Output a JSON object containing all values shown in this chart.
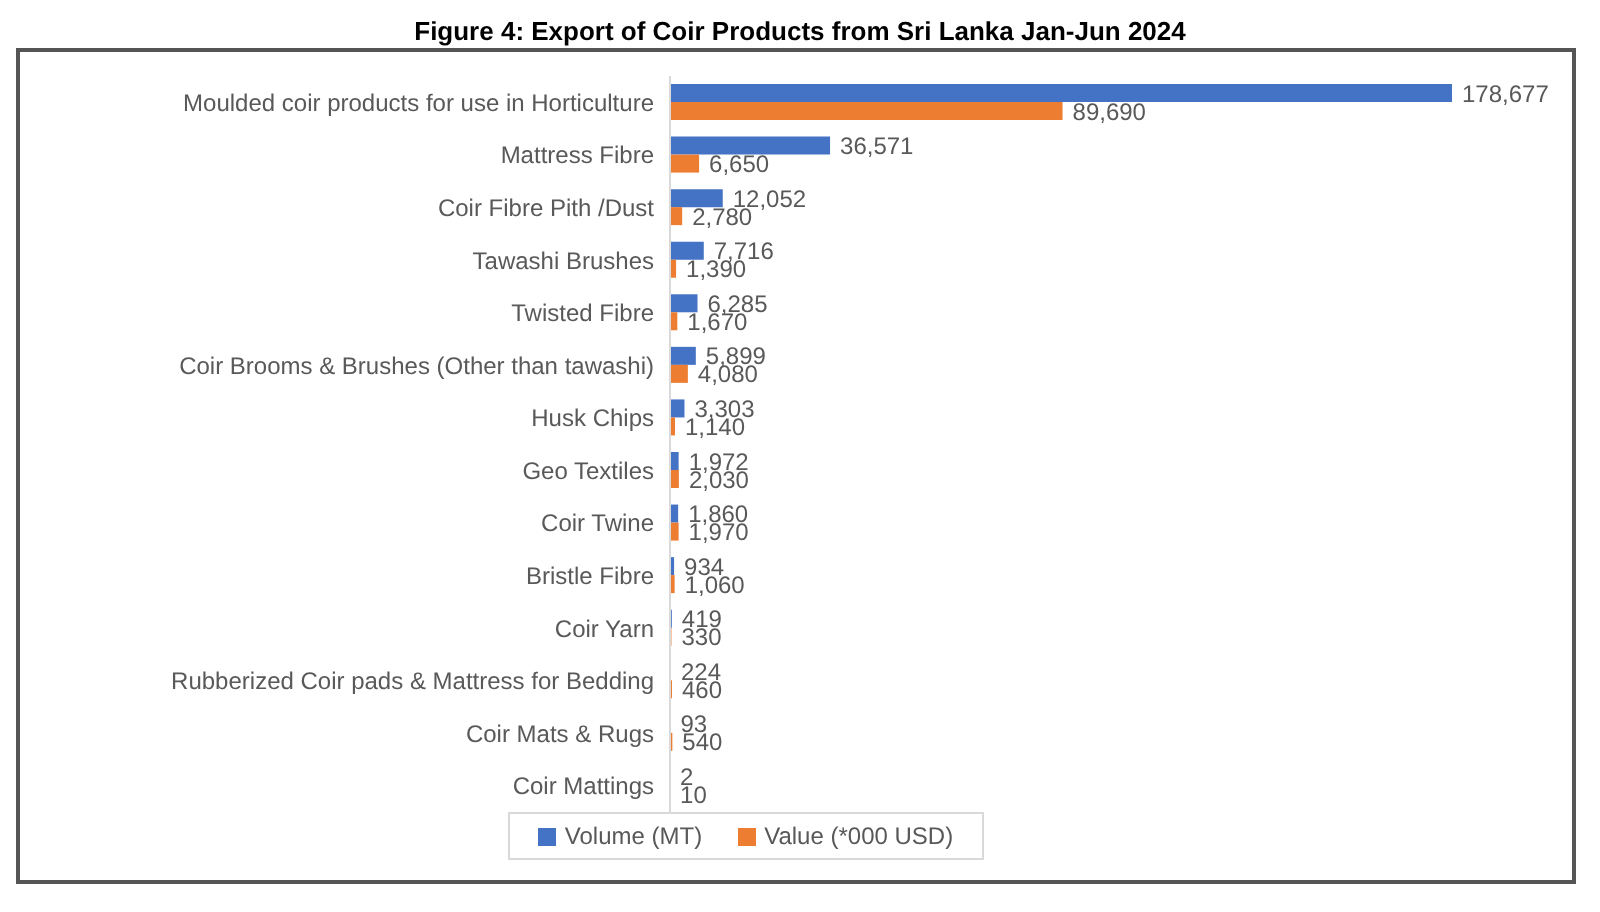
{
  "chart_data": {
    "type": "bar",
    "orientation": "horizontal",
    "title": "Figure 4: Export of Coir Products from Sri Lanka Jan-Jun 2024",
    "categories": [
      "Moulded coir products for use in Horticulture",
      "Mattress Fibre",
      "Coir Fibre Pith /Dust",
      "Tawashi Brushes",
      "Twisted Fibre",
      "Coir Brooms & Brushes (Other than tawashi)",
      "Husk Chips",
      "Geo Textiles",
      "Coir Twine",
      "Bristle Fibre",
      "Coir Yarn",
      "Rubberized Coir pads & Mattress for Bedding",
      "Coir Mats & Rugs",
      "Coir Mattings"
    ],
    "series": [
      {
        "name": "Volume (MT)",
        "color": "#4472c4",
        "values": [
          178677,
          36571,
          12052,
          7716,
          6285,
          5899,
          3303,
          1972,
          1860,
          934,
          419,
          224,
          93,
          2
        ],
        "value_labels": [
          "178,677",
          "36,571",
          "12,052",
          "7,716",
          "6,285",
          "5,899",
          "3,303",
          "1,972",
          "1,860",
          "934",
          "419",
          "224",
          "93",
          "2"
        ]
      },
      {
        "name": "Value (*000 USD)",
        "color": "#ed7d31",
        "values": [
          89690,
          6650,
          2780,
          1390,
          1670,
          4080,
          1140,
          2030,
          1970,
          1060,
          330,
          460,
          540,
          10
        ],
        "value_labels": [
          "89,690",
          "6,650",
          "2,780",
          "1,390",
          "1,670",
          "4,080",
          "1,140",
          "2,030",
          "1,970",
          "1,060",
          "330",
          "460",
          "540",
          "10"
        ]
      }
    ],
    "tick_labels": "y",
    "legend": "bottom"
  }
}
